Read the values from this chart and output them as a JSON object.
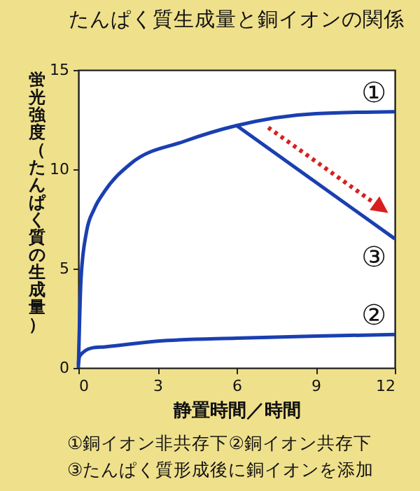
{
  "chart_data": {
    "type": "line",
    "title": "たんぱく質生成量と銅イオンの関係",
    "xlabel": "静置時間／時間",
    "ylabel": "蛍光強度（たんぱく質の生成量）",
    "xlim": [
      0,
      12
    ],
    "xticks": [
      0,
      3,
      6,
      9,
      12
    ],
    "ylim": [
      0,
      15
    ],
    "yticks": [
      0,
      5,
      10,
      15
    ],
    "grid": false,
    "legend": false,
    "series": [
      {
        "name": "①",
        "color": "#1a3fb0",
        "x": [
          0,
          0.1,
          0.3,
          0.6,
          1,
          2,
          4,
          6,
          9,
          12
        ],
        "values": [
          0,
          4.5,
          6.8,
          8.0,
          8.9,
          10.3,
          11.4,
          12.2,
          12.8,
          12.9
        ]
      },
      {
        "name": "②",
        "color": "#1a3fb0",
        "x": [
          0,
          0.05,
          0.5,
          1,
          3,
          6,
          9,
          12
        ],
        "values": [
          0.2,
          0.6,
          1.0,
          1.06,
          1.35,
          1.5,
          1.6,
          1.68
        ]
      },
      {
        "name": "③",
        "color": "#1a3fb0",
        "x": [
          6,
          12
        ],
        "values": [
          12.2,
          6.5
        ]
      }
    ],
    "annotations": [
      "①銅イオン非共存下②銅イオン共存下",
      "③たんぱく質形成後に銅イオンを添加"
    ]
  }
}
